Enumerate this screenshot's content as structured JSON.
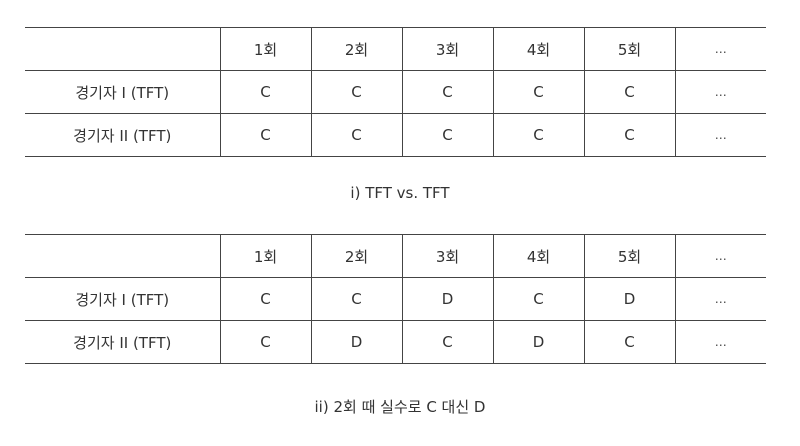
{
  "table_1": {
    "header": [
      "",
      "1회",
      "2회",
      "3회",
      "4회",
      "5회",
      "…"
    ],
    "rows": [
      {
        "player": "경기자 I (TFT)",
        "moves": [
          "C",
          "C",
          "C",
          "C",
          "C",
          "…"
        ]
      },
      {
        "player": "경기자 II (TFT)",
        "moves": [
          "C",
          "C",
          "C",
          "C",
          "C",
          "…"
        ]
      }
    ],
    "caption": "i) TFT vs. TFT"
  },
  "table_2": {
    "header": [
      "",
      "1회",
      "2회",
      "3회",
      "4회",
      "5회",
      "…"
    ],
    "rows": [
      {
        "player": "경기자 I (TFT)",
        "moves": [
          "C",
          "C",
          "D",
          "C",
          "D",
          "…"
        ]
      },
      {
        "player": "경기자 II (TFT)",
        "moves": [
          "C",
          "D",
          "C",
          "D",
          "C",
          "…"
        ]
      }
    ],
    "caption": "ii) 2회 때 실수로 C 대신 D"
  }
}
